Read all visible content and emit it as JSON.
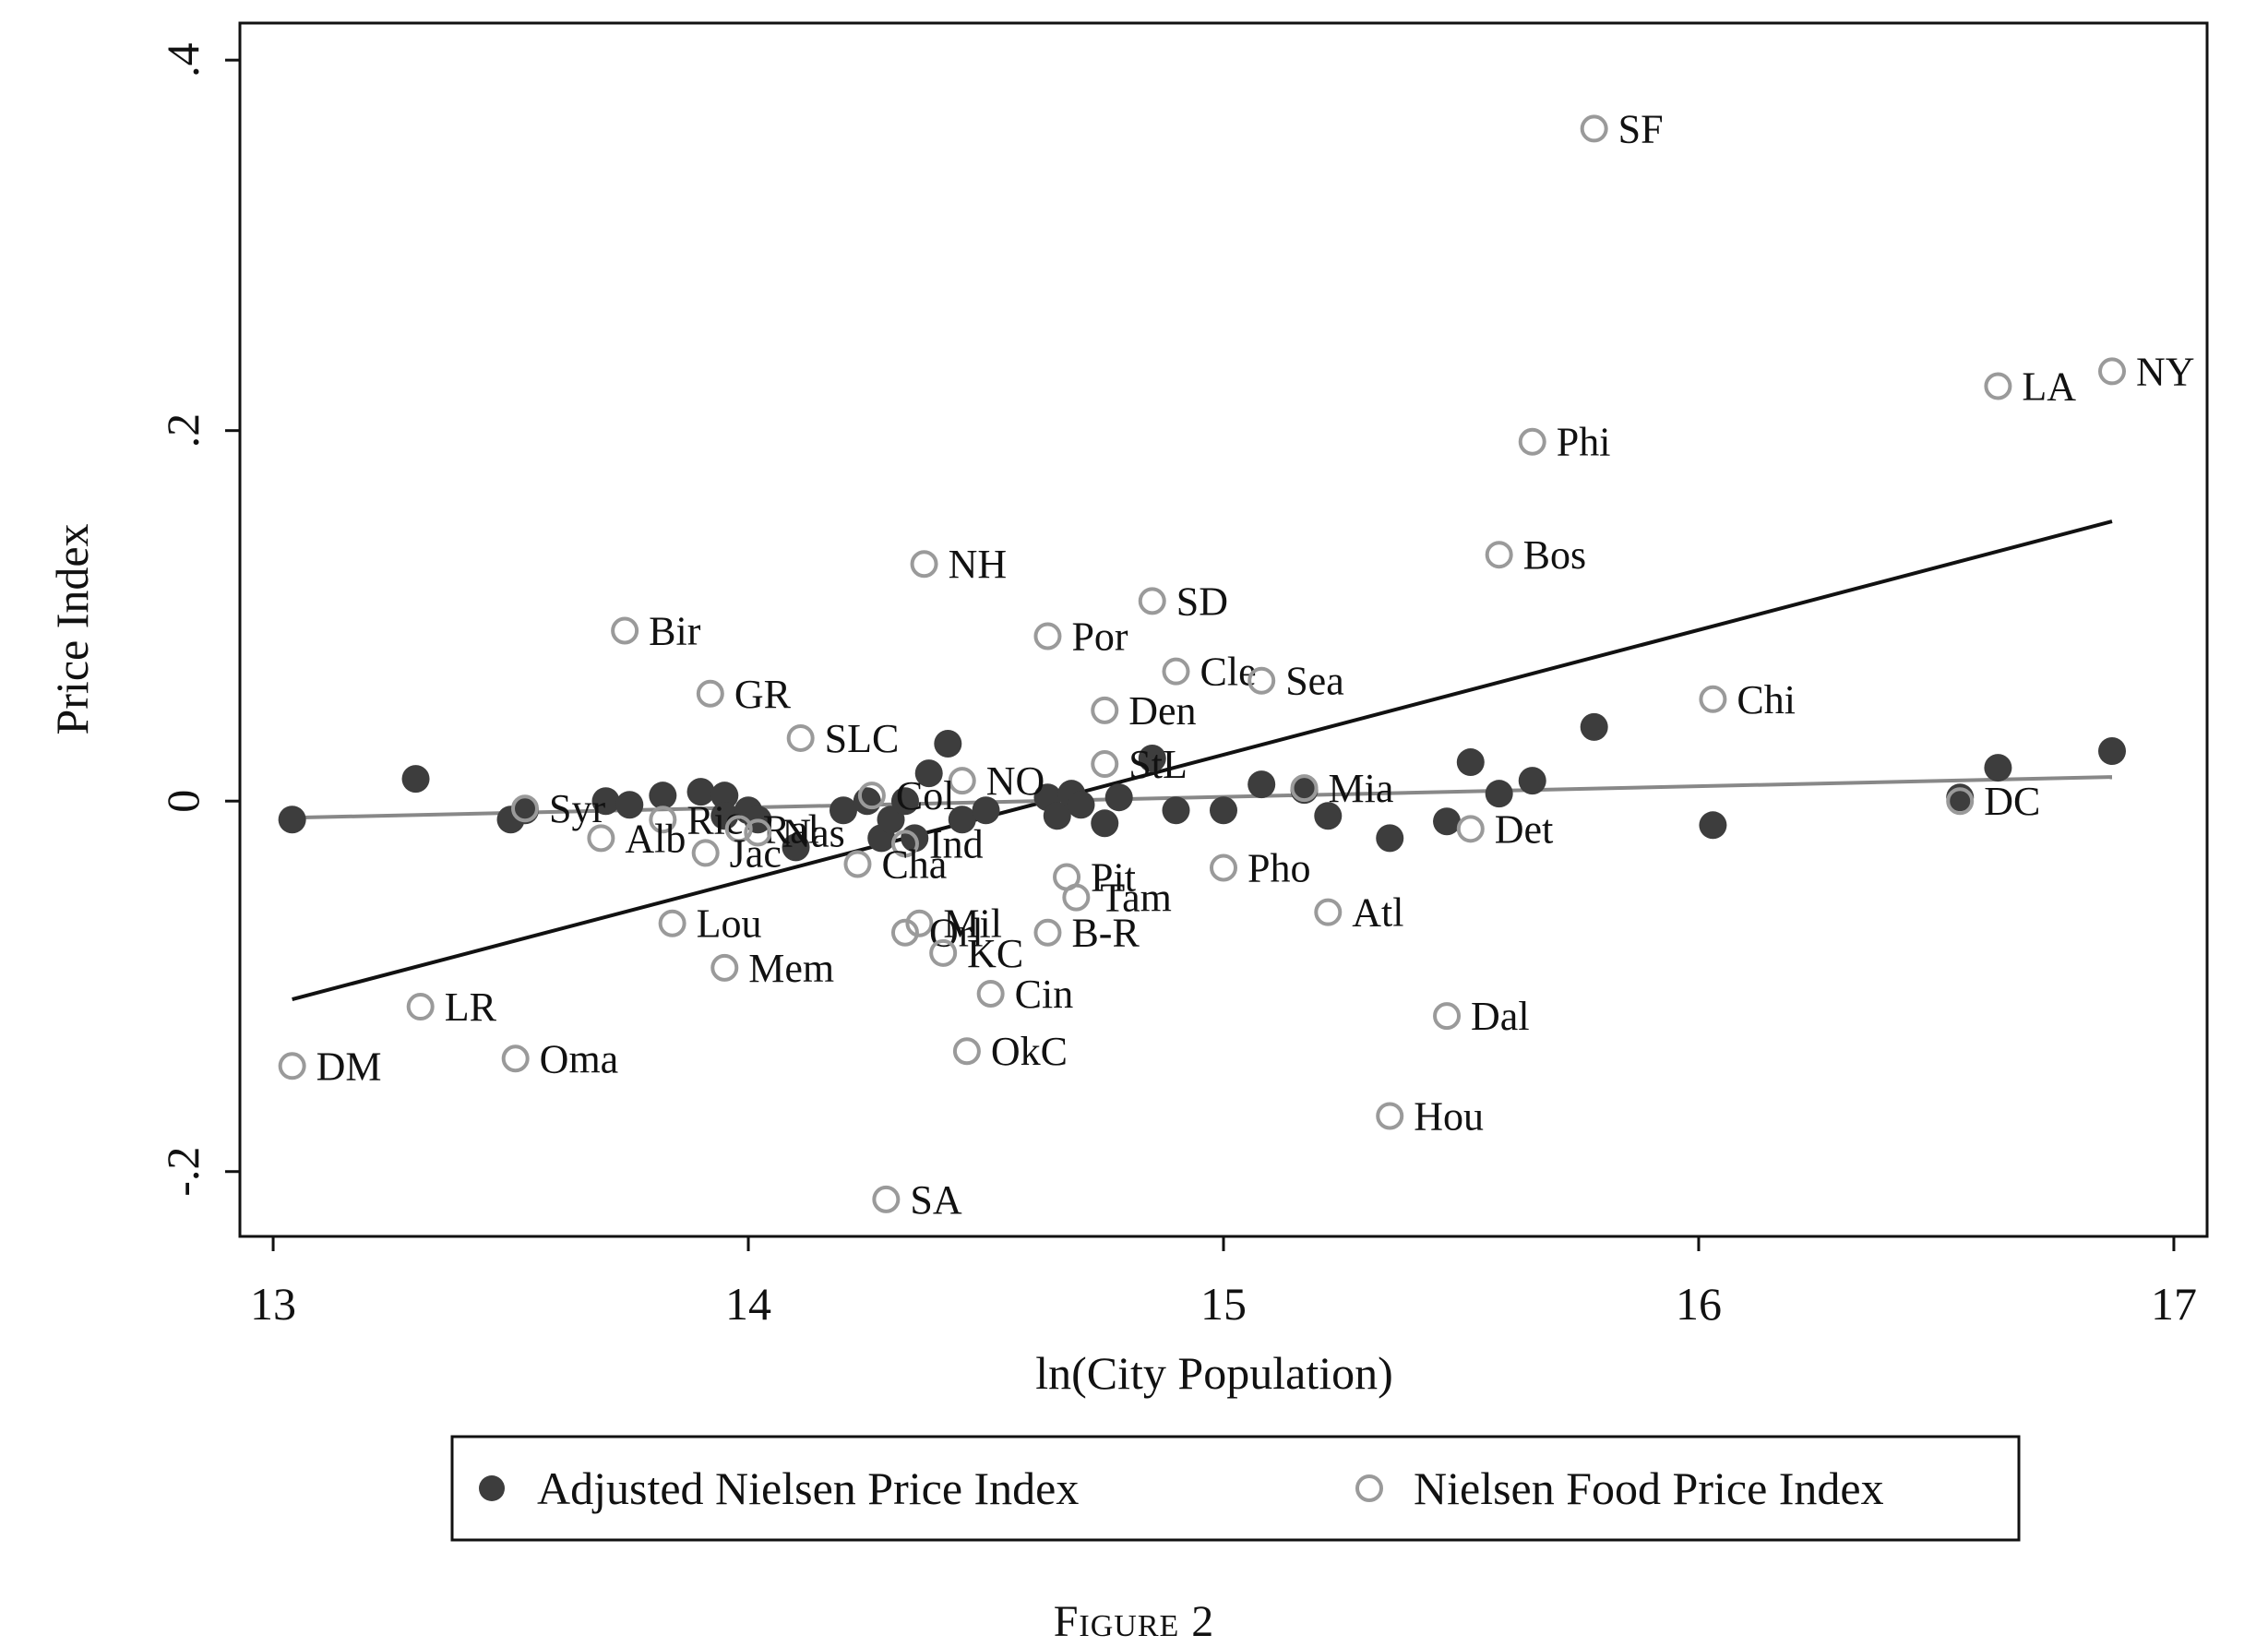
{
  "chart_data": {
    "type": "scatter",
    "xlabel": "ln(City Population)",
    "ylabel": "Price Index",
    "xlim": [
      12.93,
      17.07
    ],
    "ylim": [
      -0.235,
      0.42
    ],
    "xticks": [
      13,
      14,
      15,
      16,
      17
    ],
    "xtick_labels": [
      "13",
      "14",
      "15",
      "16",
      "17"
    ],
    "yticks": [
      -0.2,
      0,
      0.2,
      0.4
    ],
    "ytick_labels": [
      "-.2",
      "0",
      ".2",
      ".4"
    ],
    "grid": false,
    "legend_position": "bottom",
    "series": [
      {
        "name": "Adjusted Nielsen Price Index",
        "marker": "filled-circle",
        "color": "#3d3d3d",
        "points": [
          [
            13.04,
            -0.01
          ],
          [
            13.3,
            0.012
          ],
          [
            13.5,
            -0.01
          ],
          [
            13.53,
            -0.005
          ],
          [
            13.7,
            0.0
          ],
          [
            13.75,
            -0.002
          ],
          [
            13.82,
            0.003
          ],
          [
            13.9,
            0.005
          ],
          [
            13.95,
            0.003
          ],
          [
            13.95,
            -0.008
          ],
          [
            14.0,
            -0.005
          ],
          [
            14.02,
            -0.01
          ],
          [
            14.1,
            -0.025
          ],
          [
            14.2,
            -0.005
          ],
          [
            14.25,
            0.0
          ],
          [
            14.28,
            -0.02
          ],
          [
            14.3,
            -0.01
          ],
          [
            14.33,
            0.0
          ],
          [
            14.35,
            -0.02
          ],
          [
            14.38,
            0.015
          ],
          [
            14.42,
            0.031
          ],
          [
            14.45,
            -0.01
          ],
          [
            14.5,
            -0.005
          ],
          [
            14.63,
            0.002
          ],
          [
            14.65,
            -0.008
          ],
          [
            14.68,
            0.004
          ],
          [
            14.7,
            -0.002
          ],
          [
            14.75,
            -0.012
          ],
          [
            14.78,
            0.002
          ],
          [
            14.85,
            0.023
          ],
          [
            14.9,
            -0.005
          ],
          [
            15.0,
            -0.005
          ],
          [
            15.08,
            0.009
          ],
          [
            15.17,
            0.006
          ],
          [
            15.22,
            -0.008
          ],
          [
            15.35,
            -0.02
          ],
          [
            15.47,
            -0.011
          ],
          [
            15.52,
            0.021
          ],
          [
            15.58,
            0.004
          ],
          [
            15.65,
            0.011
          ],
          [
            15.78,
            0.04
          ],
          [
            16.03,
            -0.013
          ],
          [
            16.55,
            0.002
          ],
          [
            16.63,
            0.018
          ],
          [
            16.87,
            0.027
          ]
        ]
      },
      {
        "name": "Nielsen Food Price Index",
        "marker": "hollow-circle",
        "color": "#9a9a9a",
        "points": [
          {
            "x": 15.78,
            "y": 0.363,
            "label": "SF"
          },
          {
            "x": 16.87,
            "y": 0.232,
            "label": "NY"
          },
          {
            "x": 16.63,
            "y": 0.224,
            "label": "LA"
          },
          {
            "x": 15.65,
            "y": 0.194,
            "label": "Phi"
          },
          {
            "x": 15.58,
            "y": 0.133,
            "label": "Bos"
          },
          {
            "x": 14.37,
            "y": 0.128,
            "label": "NH"
          },
          {
            "x": 14.85,
            "y": 0.108,
            "label": "SD"
          },
          {
            "x": 13.74,
            "y": 0.092,
            "label": "Bir"
          },
          {
            "x": 14.63,
            "y": 0.089,
            "label": "Por"
          },
          {
            "x": 14.9,
            "y": 0.07,
            "label": "Cle"
          },
          {
            "x": 15.08,
            "y": 0.065,
            "label": "Sea"
          },
          {
            "x": 13.92,
            "y": 0.058,
            "label": "GR"
          },
          {
            "x": 16.03,
            "y": 0.055,
            "label": "Chi"
          },
          {
            "x": 14.75,
            "y": 0.049,
            "label": "Den"
          },
          {
            "x": 14.11,
            "y": 0.034,
            "label": "SLC"
          },
          {
            "x": 14.75,
            "y": 0.02,
            "label": "StL"
          },
          {
            "x": 14.45,
            "y": 0.011,
            "label": "NO"
          },
          {
            "x": 15.17,
            "y": 0.007,
            "label": "Mia"
          },
          {
            "x": 14.26,
            "y": 0.003,
            "label": "Col"
          },
          {
            "x": 16.55,
            "y": 0.0,
            "label": "DC"
          },
          {
            "x": 13.53,
            "y": -0.004,
            "label": "Syr"
          },
          {
            "x": 13.82,
            "y": -0.01,
            "label": "Ric"
          },
          {
            "x": 13.98,
            "y": -0.015,
            "label": "Ral"
          },
          {
            "x": 14.02,
            "y": -0.017,
            "label": "Nas"
          },
          {
            "x": 15.52,
            "y": -0.015,
            "label": "Det"
          },
          {
            "x": 13.69,
            "y": -0.02,
            "label": "Alb"
          },
          {
            "x": 14.33,
            "y": -0.023,
            "label": "Ind"
          },
          {
            "x": 13.91,
            "y": -0.028,
            "label": "Jac"
          },
          {
            "x": 14.23,
            "y": -0.034,
            "label": "Cha"
          },
          {
            "x": 15.0,
            "y": -0.036,
            "label": "Pho"
          },
          {
            "x": 14.67,
            "y": -0.041,
            "label": "Pit"
          },
          {
            "x": 14.69,
            "y": -0.052,
            "label": "Tam"
          },
          {
            "x": 15.22,
            "y": -0.06,
            "label": "Atl"
          },
          {
            "x": 13.84,
            "y": -0.066,
            "label": "Lou"
          },
          {
            "x": 14.36,
            "y": -0.066,
            "label": "Mil"
          },
          {
            "x": 14.63,
            "y": -0.071,
            "label": "B-R"
          },
          {
            "x": 14.33,
            "y": -0.071,
            "label": "Orl"
          },
          {
            "x": 14.41,
            "y": -0.082,
            "label": "KC"
          },
          {
            "x": 13.95,
            "y": -0.09,
            "label": "Mem"
          },
          {
            "x": 14.51,
            "y": -0.104,
            "label": "Cin"
          },
          {
            "x": 13.31,
            "y": -0.111,
            "label": "LR"
          },
          {
            "x": 15.47,
            "y": -0.116,
            "label": "Dal"
          },
          {
            "x": 14.46,
            "y": -0.135,
            "label": "OkC"
          },
          {
            "x": 13.51,
            "y": -0.139,
            "label": "Oma"
          },
          {
            "x": 13.04,
            "y": -0.143,
            "label": "DM"
          },
          {
            "x": 15.35,
            "y": -0.17,
            "label": "Hou"
          },
          {
            "x": 14.29,
            "y": -0.215,
            "label": "SA"
          }
        ]
      }
    ],
    "fit_lines": [
      {
        "series": "Nielsen Food Price Index",
        "x": [
          13.04,
          16.87
        ],
        "y": [
          -0.107,
          0.151
        ],
        "color": "#111111"
      },
      {
        "series": "Adjusted Nielsen Price Index",
        "x": [
          13.04,
          16.87
        ],
        "y": [
          -0.009,
          0.013
        ],
        "color": "#888888"
      }
    ]
  },
  "legend": {
    "items": [
      "Adjusted Nielsen Price Index",
      "Nielsen Food Price Index"
    ]
  },
  "caption": "Figure 2"
}
